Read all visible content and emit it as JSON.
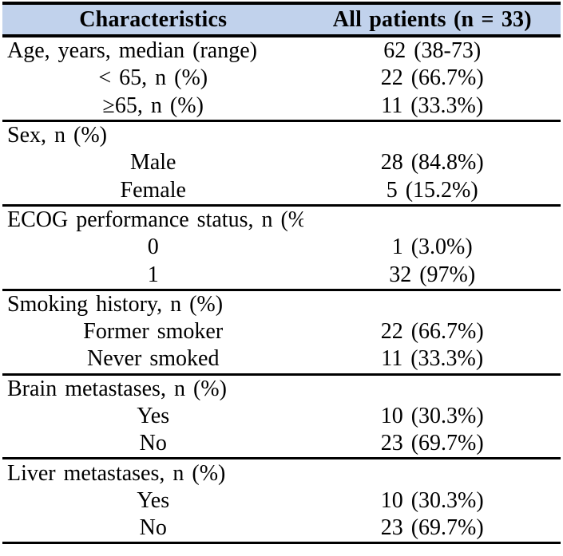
{
  "colors": {
    "header_bg": "#c1d2ec",
    "rule": "#000000",
    "text": "#000000",
    "page_bg": "#ffffff"
  },
  "table": {
    "header": {
      "characteristics": "Characteristics",
      "all_patients": "All patients (n = 33)"
    },
    "rows": [
      {
        "label": "Age, years, median (range)",
        "value": "62 (38-73)",
        "align": "left",
        "section_end": false
      },
      {
        "label": "< 65, n (%)",
        "value": "22 (66.7%)",
        "align": "center",
        "section_end": false
      },
      {
        "label": "≥65, n (%)",
        "value": "11 (33.3%)",
        "align": "center",
        "section_end": true
      },
      {
        "label": "Sex, n (%)",
        "value": "",
        "align": "left",
        "section_end": false
      },
      {
        "label": "Male",
        "value": "28 (84.8%)",
        "align": "center",
        "section_end": false
      },
      {
        "label": "Female",
        "value": "5 (15.2%)",
        "align": "center",
        "section_end": true
      },
      {
        "label": "ECOG performance status, n (%)",
        "value": "",
        "align": "left",
        "section_end": false
      },
      {
        "label": "0",
        "value": "1 (3.0%)",
        "align": "center",
        "section_end": false
      },
      {
        "label": "1",
        "value": "32 (97%)",
        "align": "center",
        "section_end": true
      },
      {
        "label": "Smoking history, n (%)",
        "value": "",
        "align": "left",
        "section_end": false
      },
      {
        "label": "Former smoker",
        "value": "22 (66.7%)",
        "align": "center",
        "section_end": false
      },
      {
        "label": "Never smoked",
        "value": "11 (33.3%)",
        "align": "center",
        "section_end": true
      },
      {
        "label": "Brain metastases, n (%)",
        "value": "",
        "align": "left",
        "section_end": false
      },
      {
        "label": "Yes",
        "value": "10 (30.3%)",
        "align": "center",
        "section_end": false
      },
      {
        "label": "No",
        "value": "23 (69.7%)",
        "align": "center",
        "section_end": true
      },
      {
        "label": "Liver metastases, n (%)",
        "value": "",
        "align": "left",
        "section_end": false
      },
      {
        "label": "Yes",
        "value": "10 (30.3%)",
        "align": "center",
        "section_end": false
      },
      {
        "label": "No",
        "value": "23 (69.7%)",
        "align": "center",
        "section_end": true
      }
    ]
  }
}
